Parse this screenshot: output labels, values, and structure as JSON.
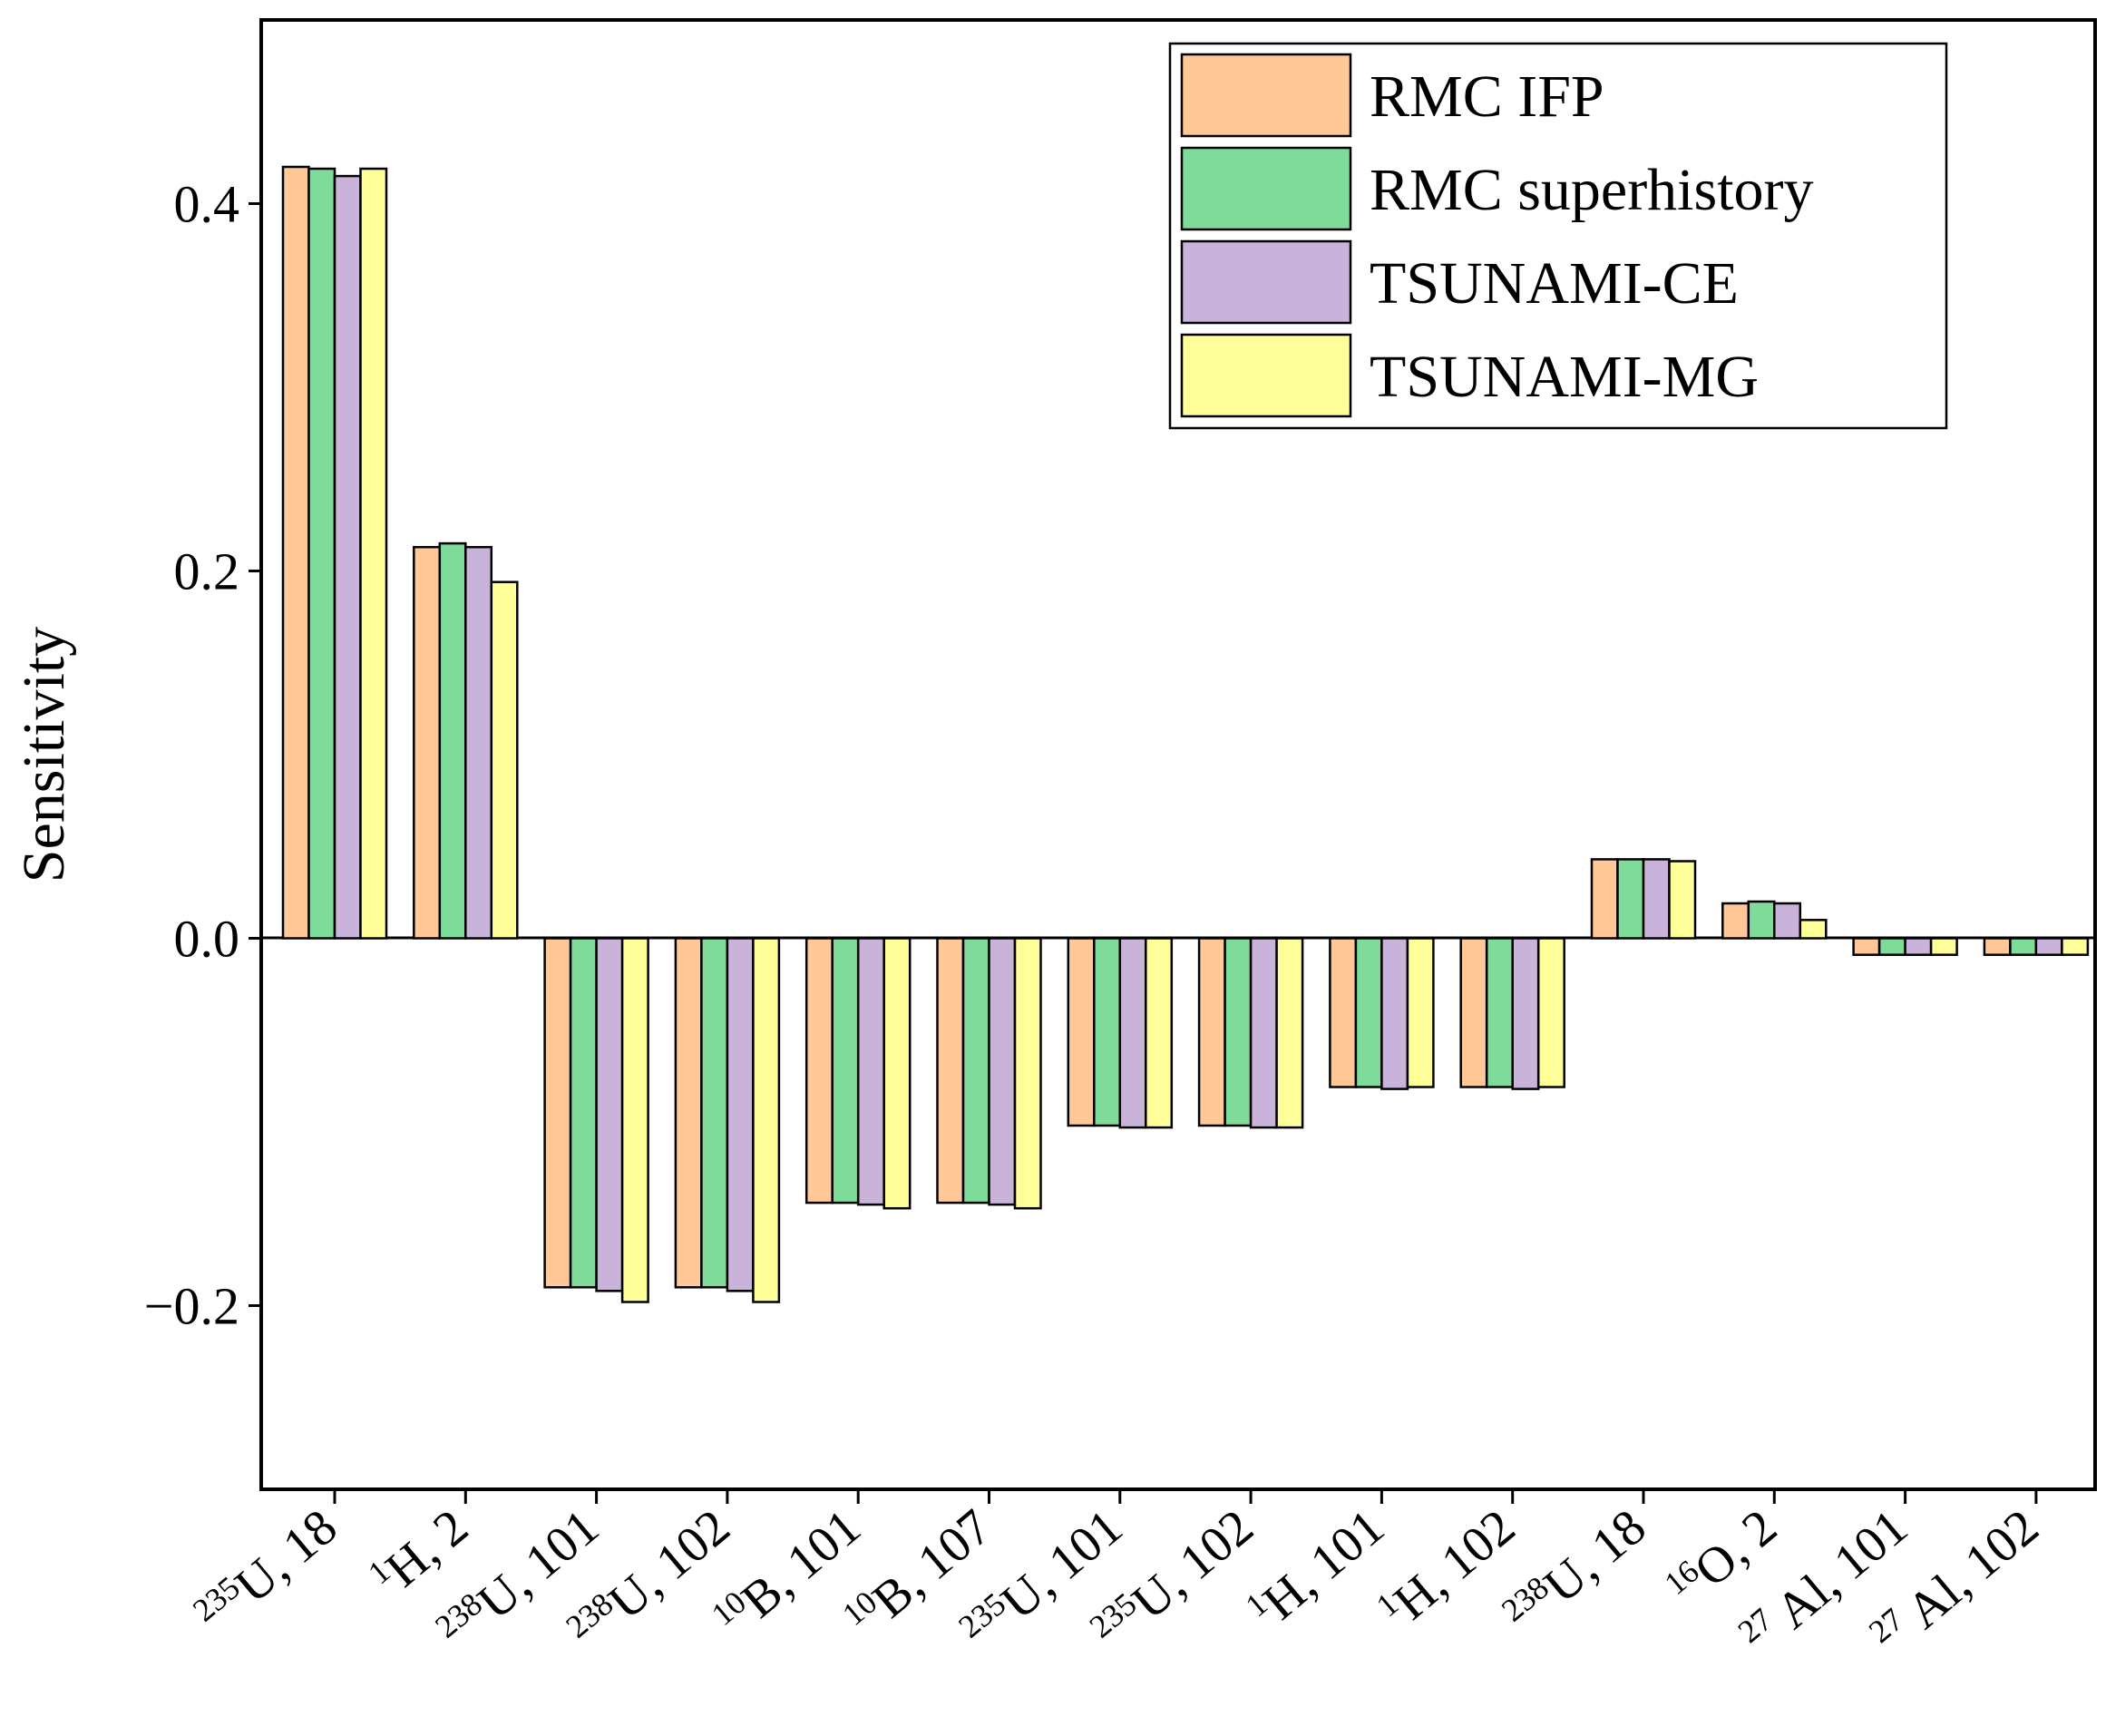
{
  "chart_data": {
    "type": "bar",
    "title": "",
    "xlabel": "",
    "ylabel": "Sensitivity",
    "ylim": [
      -0.3,
      0.5
    ],
    "yticks": [
      -0.2,
      0.0,
      0.2,
      0.4
    ],
    "ytick_labels": [
      "−0.2",
      "0.0",
      "0.2",
      "0.4"
    ],
    "grid": false,
    "legend_position": "top-right",
    "categories": [
      {
        "sup": "235",
        "label": "U, 18"
      },
      {
        "sup": "1",
        "label": "H, 2"
      },
      {
        "sup": "238",
        "label": "U, 101"
      },
      {
        "sup": "238",
        "label": "U, 102"
      },
      {
        "sup": "10",
        "label": "B, 101"
      },
      {
        "sup": "10",
        "label": "B, 107"
      },
      {
        "sup": "235",
        "label": "U, 101"
      },
      {
        "sup": "235",
        "label": "U, 102"
      },
      {
        "sup": "1",
        "label": "H, 101"
      },
      {
        "sup": "1",
        "label": "H, 102"
      },
      {
        "sup": "238",
        "label": "U, 18"
      },
      {
        "sup": "16",
        "label": "O, 2"
      },
      {
        "sup": "27",
        "label": " Al, 101"
      },
      {
        "sup": "27",
        "label": " Al, 102"
      }
    ],
    "series": [
      {
        "name": "RMC IFP",
        "color": "#FFC896",
        "values": [
          0.42,
          0.213,
          -0.19,
          -0.19,
          -0.144,
          -0.144,
          -0.102,
          -0.102,
          -0.081,
          -0.081,
          0.043,
          0.019,
          -0.009,
          -0.009
        ]
      },
      {
        "name": "RMC superhistory",
        "color": "#7FDB9A",
        "values": [
          0.419,
          0.215,
          -0.19,
          -0.19,
          -0.144,
          -0.144,
          -0.102,
          -0.102,
          -0.081,
          -0.081,
          0.043,
          0.02,
          -0.009,
          -0.009
        ]
      },
      {
        "name": "TSUNAMI-CE",
        "color": "#C9B3DA",
        "values": [
          0.415,
          0.213,
          -0.192,
          -0.192,
          -0.145,
          -0.145,
          -0.103,
          -0.103,
          -0.082,
          -0.082,
          0.043,
          0.019,
          -0.009,
          -0.009
        ]
      },
      {
        "name": "TSUNAMI-MG",
        "color": "#FFFF99",
        "values": [
          0.419,
          0.194,
          -0.198,
          -0.198,
          -0.147,
          -0.147,
          -0.103,
          -0.103,
          -0.081,
          -0.081,
          0.042,
          0.01,
          -0.009,
          -0.009
        ]
      }
    ]
  }
}
